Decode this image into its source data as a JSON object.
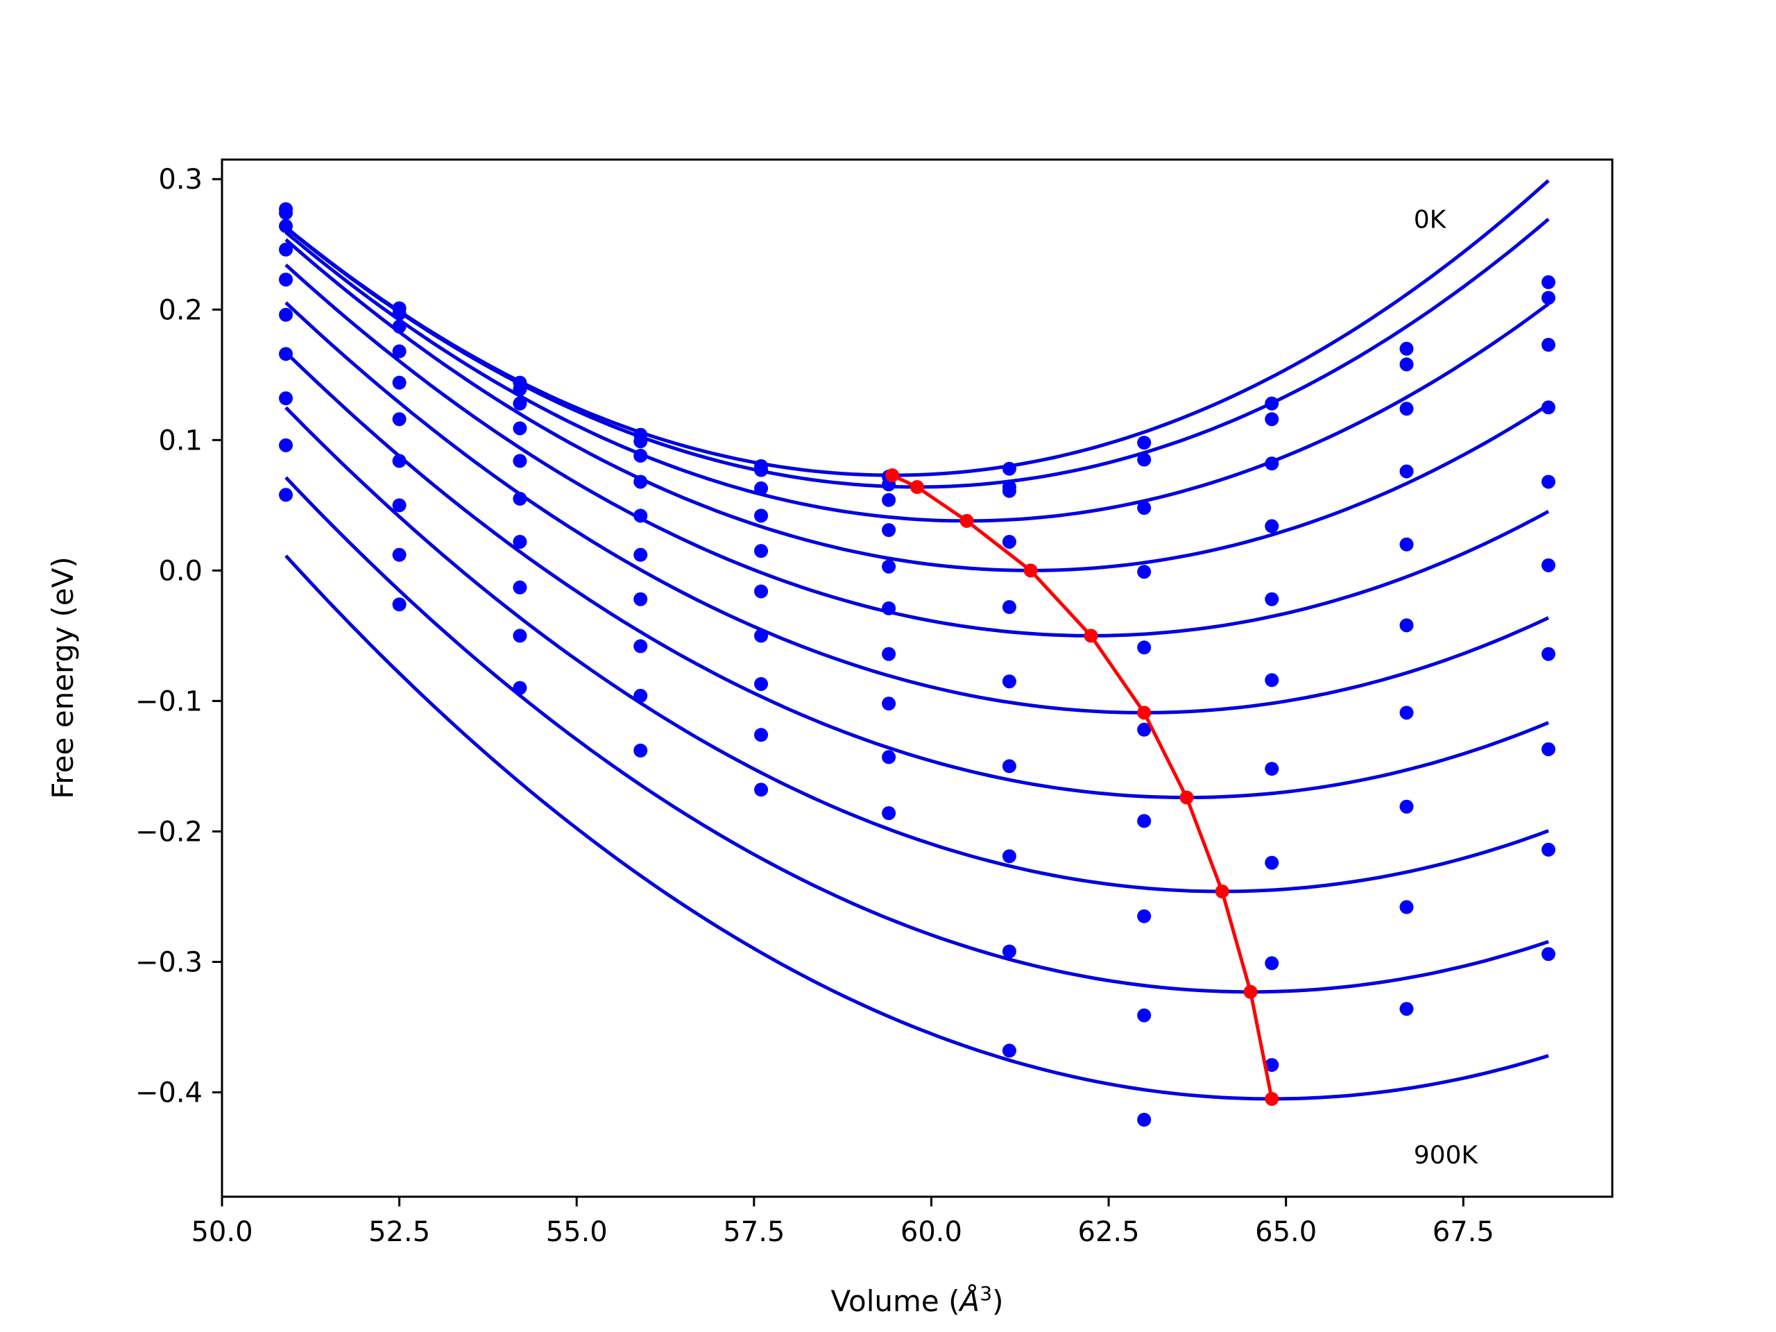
{
  "chart_data": {
    "type": "line",
    "xlabel": "Volume (",
    "xlabel_unit": "Å",
    "xlabel_exp": "3",
    "xlabel_close": ")",
    "ylabel": "Free energy (eV)",
    "xlim": [
      50.0,
      69.6
    ],
    "ylim": [
      -0.48,
      0.315
    ],
    "xticks": [
      50.0,
      52.5,
      55.0,
      57.5,
      60.0,
      62.5,
      65.0,
      67.5
    ],
    "xtick_labels": [
      "50.0",
      "52.5",
      "55.0",
      "57.5",
      "60.0",
      "62.5",
      "65.0",
      "67.5"
    ],
    "yticks": [
      0.3,
      0.2,
      0.1,
      0.0,
      -0.1,
      -0.2,
      -0.3,
      -0.4
    ],
    "ytick_labels": [
      "0.3",
      "0.2",
      "0.1",
      "0.0",
      "−0.1",
      "−0.2",
      "−0.3",
      "−0.4"
    ],
    "annotations": [
      {
        "text": "0K",
        "x": 66.8,
        "y": 0.27
      },
      {
        "text": "900K",
        "x": 66.8,
        "y": -0.447
      }
    ],
    "fit_color": "#0000e0",
    "point_color": "#0000ff",
    "minimum_color": "#ff0000",
    "fit_x_range": [
      50.9,
      68.7
    ],
    "volumes": [
      50.9,
      52.5,
      54.2,
      55.9,
      57.6,
      59.4,
      61.1,
      63.0,
      64.8,
      66.7,
      68.7
    ],
    "series": [
      {
        "points": [
          0.277,
          0.201,
          0.144,
          0.104,
          0.08,
          0.072,
          0.078,
          0.098,
          0.128,
          0.17,
          0.221
        ],
        "fit": {
          "v0": 59.45,
          "f0": 0.073,
          "a": 0.00262,
          "b": 2.2e-06
        }
      },
      {
        "points": [
          0.274,
          0.197,
          0.139,
          0.099,
          0.077,
          0.066,
          0.064,
          0.085,
          0.116,
          0.158,
          0.209
        ],
        "fit": {
          "v0": 59.8,
          "f0": 0.064,
          "a": 0.00255,
          "b": 4.7e-06
        }
      },
      {
        "points": [
          0.264,
          0.187,
          0.128,
          0.088,
          0.063,
          0.054,
          0.061,
          0.048,
          0.082,
          0.124,
          0.173
        ],
        "fit": {
          "v0": 60.5,
          "f0": 0.038,
          "a": 0.00244,
          "b": 4.1e-06
        }
      },
      {
        "points": [
          0.246,
          0.168,
          0.109,
          0.068,
          0.042,
          0.031,
          0.022,
          -0.001,
          0.034,
          0.076,
          0.125
        ],
        "fit": {
          "v0": 61.4,
          "f0": 0.0,
          "a": 0.00235,
          "b": 4.7e-06
        }
      },
      {
        "points": [
          0.223,
          0.144,
          0.084,
          0.042,
          0.015,
          0.003,
          -0.028,
          -0.059,
          -0.022,
          0.02,
          0.068
        ],
        "fit": {
          "v0": 62.25,
          "f0": -0.05,
          "a": 0.00226,
          "b": 4.7e-06
        }
      },
      {
        "points": [
          0.196,
          0.116,
          0.055,
          0.012,
          -0.016,
          -0.029,
          -0.085,
          -0.122,
          -0.084,
          -0.042,
          0.004
        ],
        "fit": {
          "v0": 63.0,
          "f0": -0.109,
          "a": 0.00221,
          "b": 5.2e-06
        }
      },
      {
        "points": [
          0.166,
          0.084,
          0.022,
          -0.022,
          -0.05,
          -0.064,
          -0.15,
          -0.192,
          -0.152,
          -0.109,
          -0.064
        ],
        "fit": {
          "v0": 63.6,
          "f0": -0.174,
          "a": 0.00218,
          "b": 5.1e-06
        }
      },
      {
        "points": [
          0.132,
          0.05,
          -0.013,
          -0.058,
          -0.087,
          -0.102,
          -0.219,
          -0.265,
          -0.224,
          -0.181,
          -0.137
        ],
        "fit": {
          "v0": 64.1,
          "f0": -0.246,
          "a": 0.00218,
          "b": 3.9e-06
        }
      },
      {
        "points": [
          0.096,
          0.012,
          -0.05,
          -0.096,
          -0.126,
          -0.143,
          -0.292,
          -0.341,
          -0.301,
          -0.258,
          -0.214
        ],
        "fit": {
          "v0": 64.5,
          "f0": -0.323,
          "a": 0.00217,
          "b": 2.8e-06
        }
      },
      {
        "points": [
          0.058,
          -0.026,
          -0.09,
          -0.138,
          -0.168,
          -0.186,
          -0.368,
          -0.421,
          -0.379,
          -0.336,
          -0.294
        ],
        "fit": {
          "v0": 64.8,
          "f0": -0.405,
          "a": 0.00217,
          "b": 1.1e-06
        }
      }
    ],
    "minima": {
      "x": [
        59.45,
        59.8,
        60.5,
        61.4,
        62.25,
        63.0,
        63.6,
        64.1,
        64.5,
        64.8
      ],
      "y": [
        0.073,
        0.064,
        0.038,
        0.0,
        -0.05,
        -0.109,
        -0.174,
        -0.246,
        -0.323,
        -0.405
      ]
    }
  }
}
